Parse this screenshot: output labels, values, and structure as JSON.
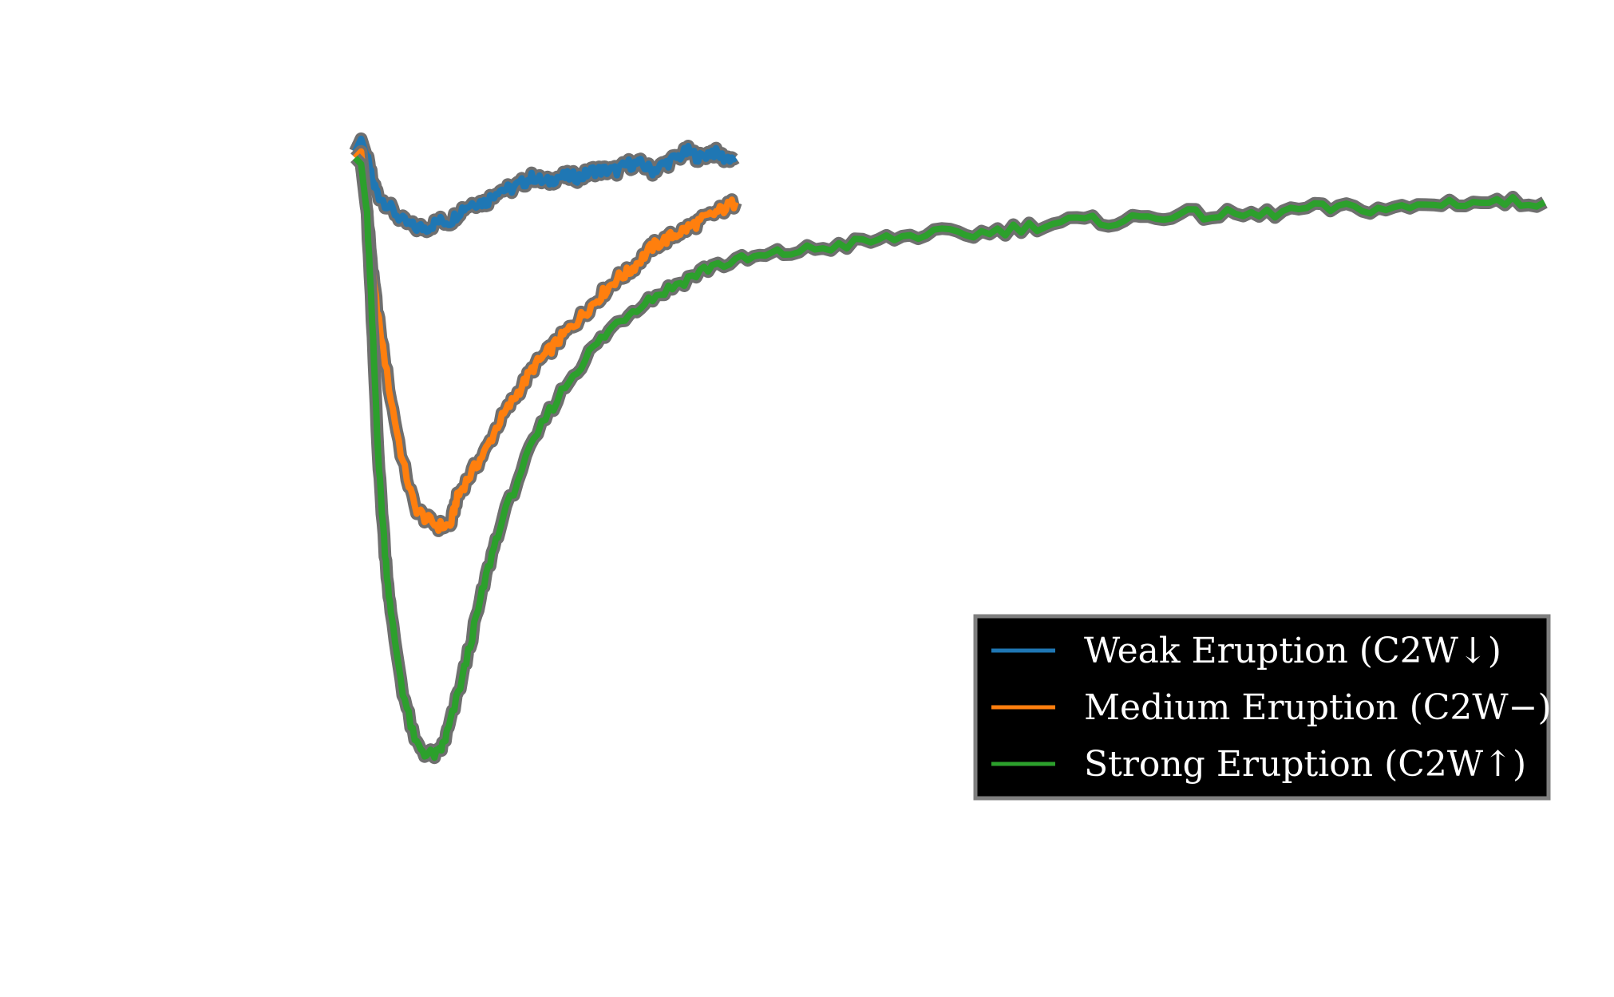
{
  "chart_data": {
    "type": "line",
    "title": "",
    "xlabel": "",
    "ylabel": "",
    "grid": false,
    "legend_placement": "lower-right",
    "xlim": [
      0,
      1000
    ],
    "ylim": [
      0,
      1
    ],
    "series": [
      {
        "name": "Weak Eruption (C2W↓)",
        "color": "#1f77b4",
        "x": [
          0,
          5,
          10,
          15,
          20,
          30,
          40,
          50,
          60,
          70,
          80,
          90,
          100,
          110,
          120,
          130,
          140,
          150,
          160,
          170,
          180,
          190,
          200,
          210,
          220,
          230,
          240,
          250,
          260,
          270,
          280,
          290,
          300,
          310,
          320
        ],
        "y": [
          0.95,
          0.97,
          0.94,
          0.9,
          0.88,
          0.86,
          0.84,
          0.83,
          0.83,
          0.84,
          0.84,
          0.86,
          0.87,
          0.87,
          0.89,
          0.89,
          0.9,
          0.91,
          0.9,
          0.91,
          0.91,
          0.91,
          0.92,
          0.92,
          0.92,
          0.93,
          0.93,
          0.92,
          0.93,
          0.94,
          0.95,
          0.94,
          0.95,
          0.94,
          0.94
        ]
      },
      {
        "name": "Medium Eruption (C2W−)",
        "color": "#ff7f0e",
        "x": [
          0,
          5,
          10,
          15,
          20,
          30,
          40,
          50,
          60,
          70,
          80,
          85,
          90,
          100,
          110,
          120,
          130,
          140,
          150,
          160,
          170,
          180,
          190,
          200,
          210,
          220,
          230,
          240,
          250,
          260,
          270,
          280,
          290,
          300,
          310,
          320
        ],
        "y": [
          0.94,
          0.95,
          0.85,
          0.75,
          0.68,
          0.56,
          0.46,
          0.39,
          0.37,
          0.36,
          0.36,
          0.4,
          0.42,
          0.45,
          0.48,
          0.52,
          0.55,
          0.58,
          0.61,
          0.63,
          0.65,
          0.67,
          0.69,
          0.71,
          0.73,
          0.75,
          0.76,
          0.78,
          0.8,
          0.81,
          0.82,
          0.83,
          0.84,
          0.85,
          0.86,
          0.87
        ]
      },
      {
        "name": "Strong Eruption (C2W↑)",
        "color": "#2ca02c",
        "x": [
          0,
          5,
          10,
          15,
          20,
          25,
          30,
          40,
          50,
          60,
          70,
          75,
          80,
          90,
          100,
          110,
          120,
          140,
          160,
          180,
          200,
          220,
          240,
          260,
          280,
          300,
          330,
          360,
          400,
          440,
          480,
          520,
          560,
          600,
          640,
          680,
          720,
          760,
          800,
          840,
          880,
          920,
          960,
          1000
        ],
        "y": [
          0.94,
          0.93,
          0.85,
          0.65,
          0.45,
          0.32,
          0.22,
          0.1,
          0.02,
          0.0,
          0.0,
          0.02,
          0.05,
          0.12,
          0.2,
          0.28,
          0.35,
          0.45,
          0.53,
          0.59,
          0.64,
          0.68,
          0.71,
          0.73,
          0.75,
          0.77,
          0.78,
          0.79,
          0.8,
          0.81,
          0.82,
          0.82,
          0.83,
          0.84,
          0.84,
          0.85,
          0.85,
          0.85,
          0.86,
          0.86,
          0.86,
          0.87,
          0.87,
          0.87
        ]
      }
    ]
  }
}
